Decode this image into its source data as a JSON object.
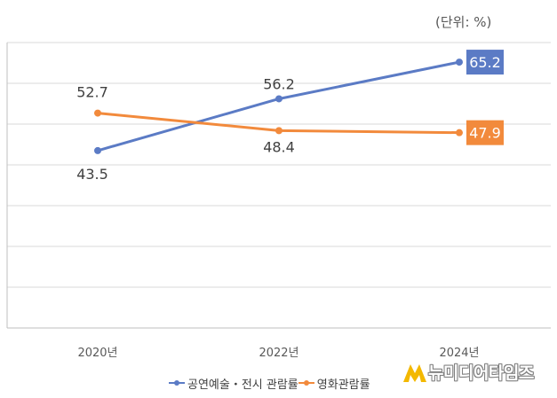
{
  "unit_label": "(단위: %)",
  "watermark": "뉴미디어타임즈",
  "colors": {
    "series1": "#5B7BC5",
    "series2": "#F28A3C",
    "grid": "#D9D9D9",
    "axis": "#BFBFBF",
    "text": "#595959"
  },
  "chart_data": {
    "type": "line",
    "categories": [
      "2020년",
      "2022년",
      "2024년"
    ],
    "series": [
      {
        "name": "공연예술・전시 관람률",
        "values": [
          43.5,
          56.2,
          65.2
        ],
        "value_labels": [
          "43.5",
          "56.2",
          "65.2"
        ]
      },
      {
        "name": "영화관람률",
        "values": [
          52.7,
          48.4,
          47.9
        ],
        "value_labels": [
          "52.7",
          "48.4",
          "47.9"
        ]
      }
    ],
    "ylim": [
      0,
      70
    ],
    "y_tick_labels_visible": false,
    "grid": true,
    "legend": "bottom"
  },
  "legend": {
    "items": [
      "공연예술・전시 관람률",
      "영화관람률"
    ]
  }
}
